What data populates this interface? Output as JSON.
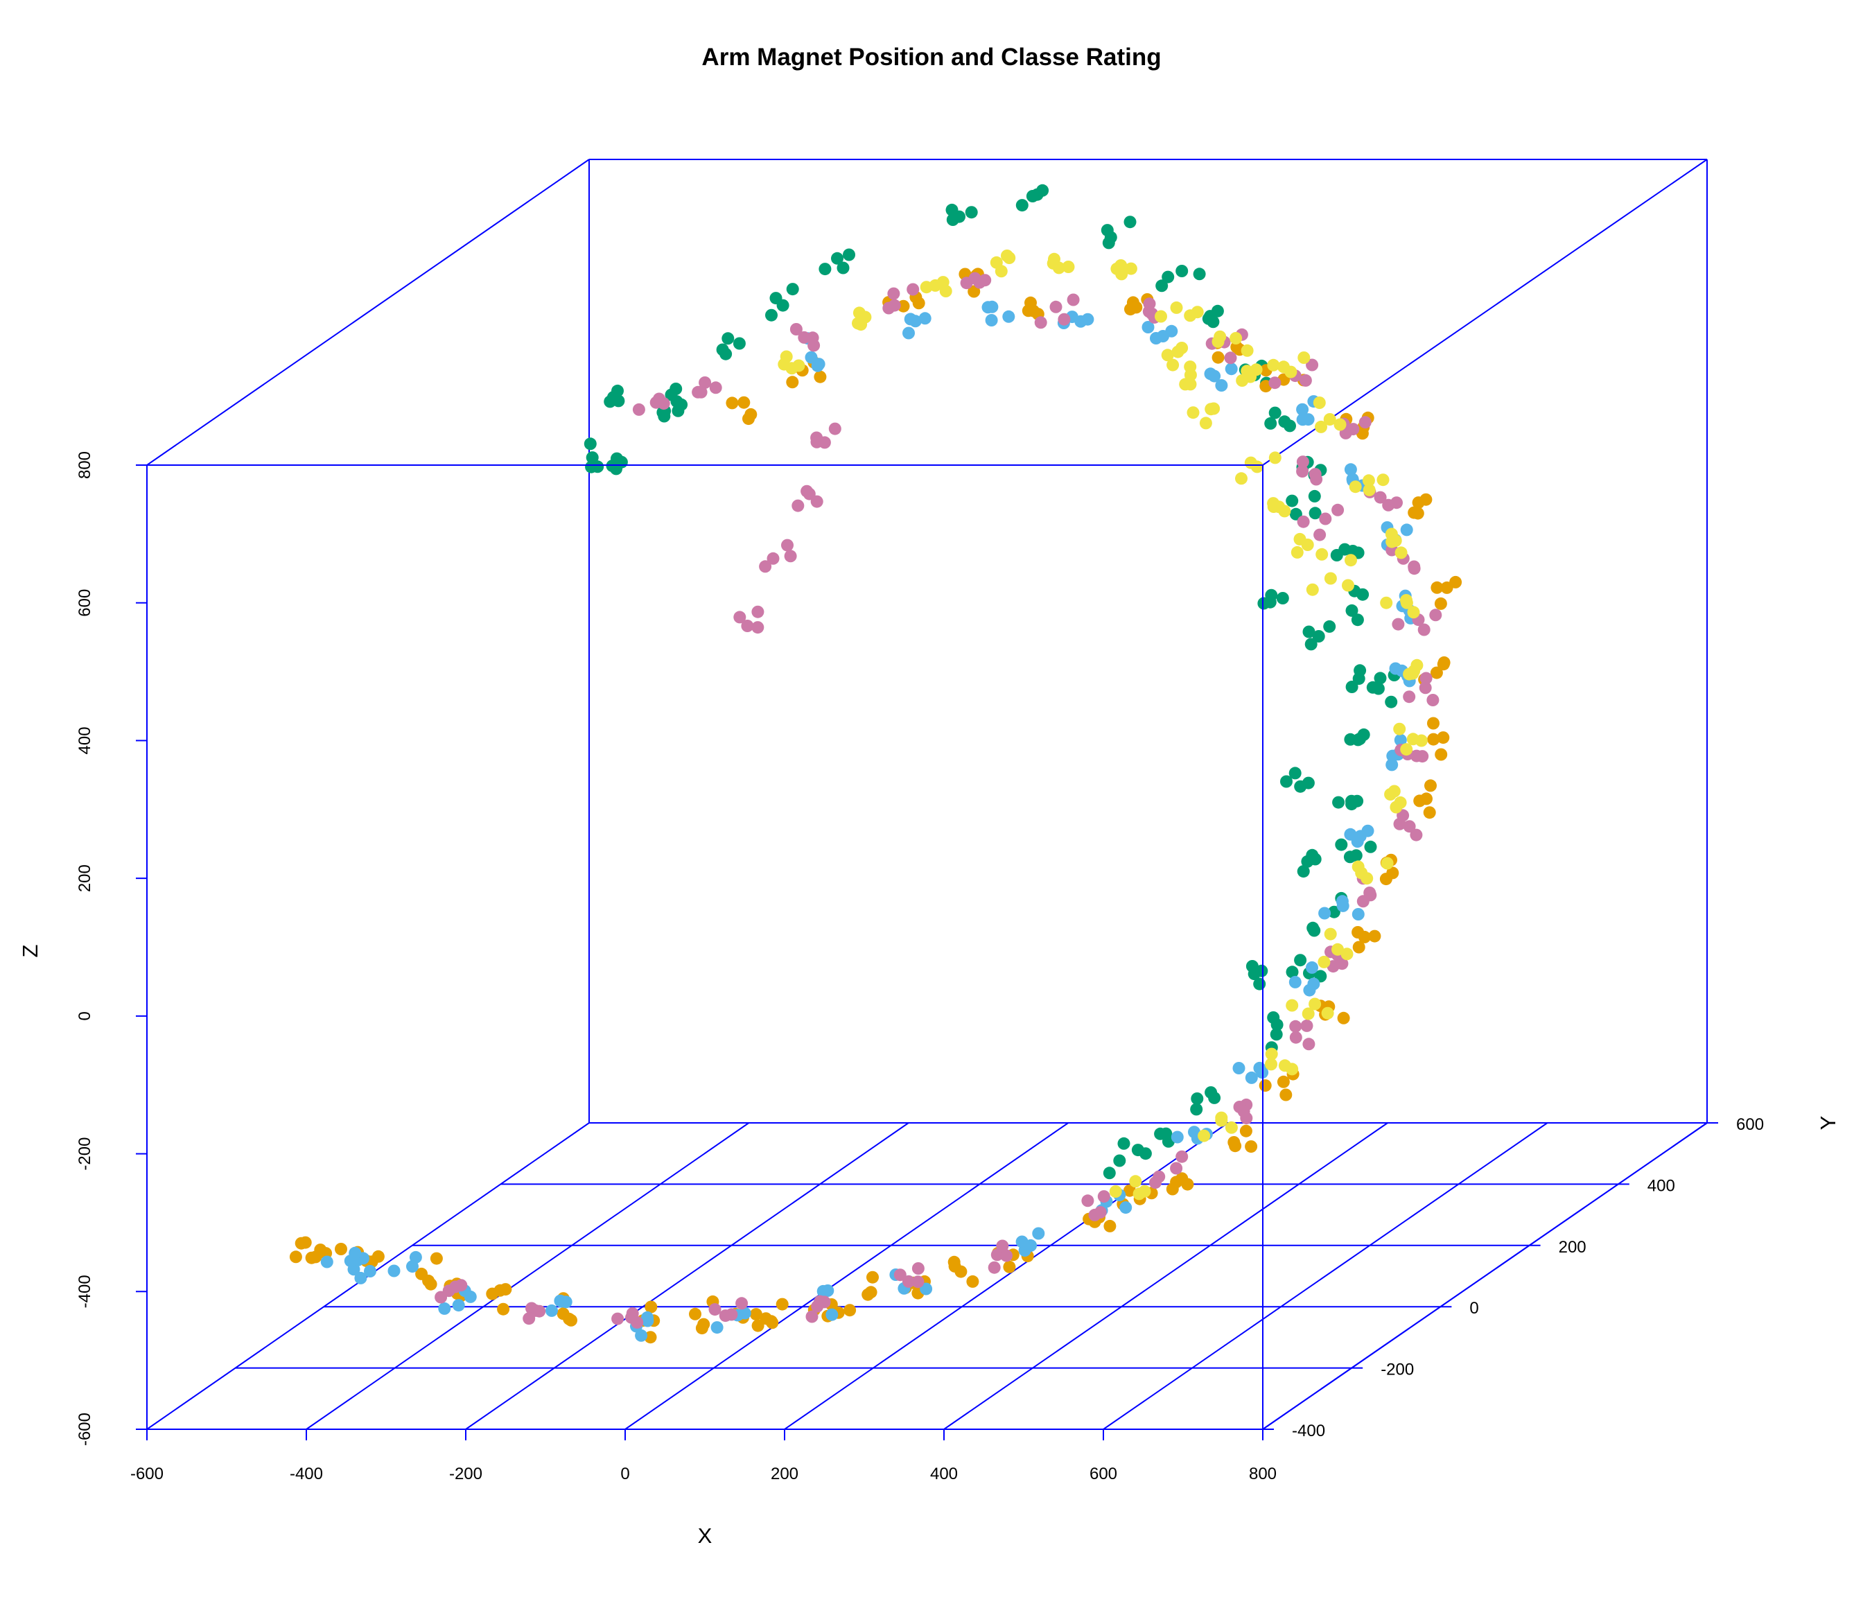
{
  "chart_data": {
    "type": "scatter3d",
    "title": "Arm Magnet Position and Classe Rating",
    "xlabel": "X",
    "ylabel": "Y",
    "zlabel": "Z",
    "xlim": [
      -600,
      800
    ],
    "ylim": [
      -400,
      600
    ],
    "zlim": [
      -600,
      800
    ],
    "x_ticks": [
      -600,
      -400,
      -200,
      0,
      200,
      400,
      600,
      800
    ],
    "y_ticks": [
      -400,
      -200,
      0,
      200,
      400,
      600
    ],
    "z_ticks": [
      -600,
      -400,
      -200,
      0,
      200,
      400,
      600,
      800
    ],
    "grid": "floor",
    "legend": "none",
    "class_colors": [
      "#009E73",
      "#E69F00",
      "#56B4E9",
      "#CC79A7",
      "#F0E442"
    ],
    "box_color": "#0000FF",
    "series": [
      {
        "color": "#009E73",
        "points": [
          [
            -175,
            -100,
            760
          ],
          [
            -120,
            -80,
            760
          ],
          [
            -100,
            0,
            790
          ],
          [
            -80,
            100,
            810
          ],
          [
            -60,
            200,
            820
          ],
          [
            -180,
            -150,
            700
          ],
          [
            -160,
            -120,
            680
          ],
          [
            -140,
            -60,
            720
          ],
          [
            30,
            300,
            850
          ],
          [
            100,
            350,
            860
          ],
          [
            220,
            300,
            820
          ],
          [
            320,
            280,
            780
          ],
          [
            400,
            200,
            750
          ],
          [
            500,
            120,
            700
          ],
          [
            560,
            80,
            650
          ],
          [
            600,
            60,
            600
          ],
          [
            630,
            -20,
            560
          ],
          [
            680,
            0,
            500
          ],
          [
            700,
            -20,
            420
          ],
          [
            720,
            -40,
            330
          ],
          [
            730,
            -60,
            250
          ],
          [
            740,
            -80,
            170
          ],
          [
            720,
            -60,
            80
          ],
          [
            700,
            -60,
            0
          ],
          [
            680,
            -80,
            -80
          ],
          [
            650,
            -100,
            -160
          ],
          [
            600,
            -150,
            -230
          ],
          [
            560,
            -200,
            -260
          ],
          [
            520,
            -220,
            -290
          ],
          [
            620,
            -60,
            450
          ],
          [
            660,
            -40,
            380
          ],
          [
            700,
            40,
            280
          ],
          [
            680,
            -100,
            200
          ],
          [
            700,
            -120,
            100
          ],
          [
            650,
            -150,
            -50
          ]
        ]
      },
      {
        "color": "#E69F00",
        "points": [
          [
            -40,
            -60,
            740
          ],
          [
            0,
            0,
            760
          ],
          [
            60,
            120,
            800
          ],
          [
            120,
            180,
            820
          ],
          [
            200,
            150,
            780
          ],
          [
            300,
            200,
            760
          ],
          [
            420,
            180,
            720
          ],
          [
            520,
            150,
            680
          ],
          [
            620,
            160,
            620
          ],
          [
            700,
            120,
            500
          ],
          [
            740,
            100,
            400
          ],
          [
            760,
            80,
            300
          ],
          [
            770,
            60,
            200
          ],
          [
            760,
            40,
            120
          ],
          [
            740,
            0,
            30
          ],
          [
            720,
            -40,
            -60
          ],
          [
            700,
            -80,
            -140
          ],
          [
            670,
            -120,
            -220
          ],
          [
            630,
            -160,
            -290
          ],
          [
            580,
            -200,
            -330
          ],
          [
            500,
            -240,
            -370
          ],
          [
            420,
            -280,
            -400
          ],
          [
            320,
            -300,
            -430
          ],
          [
            220,
            -330,
            -450
          ],
          [
            120,
            -350,
            -460
          ],
          [
            0,
            -360,
            -460
          ],
          [
            -100,
            -360,
            -450
          ],
          [
            -200,
            -340,
            -430
          ],
          [
            -300,
            -320,
            -410
          ],
          [
            -380,
            -300,
            -400
          ],
          [
            -420,
            -320,
            -380
          ],
          [
            -440,
            -330,
            -360
          ],
          [
            150,
            -340,
            -470
          ],
          [
            260,
            -320,
            -440
          ],
          [
            -250,
            -330,
            -420
          ],
          [
            60,
            -350,
            -455
          ],
          [
            360,
            -290,
            -420
          ],
          [
            540,
            -210,
            -350
          ]
        ]
      },
      {
        "color": "#56B4E9",
        "points": [
          [
            0,
            20,
            770
          ],
          [
            80,
            100,
            790
          ],
          [
            160,
            140,
            790
          ],
          [
            260,
            160,
            760
          ],
          [
            360,
            150,
            740
          ],
          [
            460,
            140,
            700
          ],
          [
            560,
            120,
            650
          ],
          [
            640,
            90,
            560
          ],
          [
            700,
            60,
            480
          ],
          [
            730,
            40,
            400
          ],
          [
            750,
            20,
            300
          ],
          [
            740,
            0,
            200
          ],
          [
            720,
            -20,
            100
          ],
          [
            700,
            -40,
            0
          ],
          [
            680,
            -70,
            -100
          ],
          [
            640,
            -120,
            -200
          ],
          [
            590,
            -170,
            -280
          ],
          [
            520,
            -220,
            -340
          ],
          [
            420,
            -260,
            -390
          ],
          [
            300,
            -300,
            -430
          ],
          [
            200,
            -320,
            -450
          ],
          [
            100,
            -340,
            -460
          ],
          [
            0,
            -350,
            -460
          ],
          [
            -120,
            -350,
            -450
          ],
          [
            -240,
            -330,
            -430
          ],
          [
            -340,
            -310,
            -410
          ],
          [
            -380,
            -320,
            -390
          ],
          [
            -400,
            -300,
            -400
          ]
        ]
      },
      {
        "color": "#CC79A7",
        "points": [
          [
            -150,
            -60,
            740
          ],
          [
            -100,
            -40,
            760
          ],
          [
            -20,
            40,
            790
          ],
          [
            60,
            100,
            810
          ],
          [
            140,
            160,
            820
          ],
          [
            240,
            140,
            790
          ],
          [
            340,
            170,
            770
          ],
          [
            440,
            160,
            730
          ],
          [
            540,
            140,
            690
          ],
          [
            620,
            110,
            620
          ],
          [
            680,
            80,
            540
          ],
          [
            720,
            60,
            460
          ],
          [
            750,
            40,
            380
          ],
          [
            770,
            20,
            290
          ],
          [
            770,
            0,
            200
          ],
          [
            760,
            -20,
            110
          ],
          [
            740,
            -50,
            20
          ],
          [
            710,
            -80,
            -70
          ],
          [
            680,
            -110,
            -160
          ],
          [
            640,
            -150,
            -240
          ],
          [
            580,
            -200,
            -310
          ],
          [
            500,
            -240,
            -360
          ],
          [
            400,
            -280,
            -400
          ],
          [
            300,
            -300,
            -430
          ],
          [
            200,
            -320,
            -450
          ],
          [
            100,
            -340,
            -460
          ],
          [
            -20,
            -350,
            -460
          ],
          [
            -140,
            -350,
            -450
          ],
          [
            -260,
            -330,
            -430
          ],
          [
            -50,
            100,
            540
          ],
          [
            -70,
            60,
            460
          ],
          [
            -80,
            20,
            380
          ],
          [
            -60,
            140,
            600
          ],
          [
            560,
            120,
            560
          ],
          [
            600,
            100,
            500
          ]
        ]
      },
      {
        "color": "#F0E442",
        "points": [
          [
            -20,
            0,
            780
          ],
          [
            40,
            60,
            800
          ],
          [
            100,
            120,
            830
          ],
          [
            160,
            150,
            850
          ],
          [
            220,
            170,
            840
          ],
          [
            300,
            180,
            820
          ],
          [
            380,
            160,
            780
          ],
          [
            460,
            150,
            740
          ],
          [
            540,
            130,
            700
          ],
          [
            600,
            110,
            640
          ],
          [
            660,
            90,
            560
          ],
          [
            700,
            70,
            480
          ],
          [
            730,
            50,
            400
          ],
          [
            750,
            30,
            310
          ],
          [
            760,
            10,
            220
          ],
          [
            750,
            -10,
            130
          ],
          [
            730,
            -40,
            40
          ],
          [
            710,
            -70,
            -50
          ],
          [
            690,
            -100,
            -130
          ],
          [
            660,
            -130,
            -190
          ],
          [
            620,
            -170,
            -250
          ],
          [
            540,
            -220,
            -320
          ],
          [
            420,
            120,
            700
          ],
          [
            460,
            100,
            660
          ],
          [
            520,
            90,
            580
          ],
          [
            560,
            80,
            520
          ],
          [
            600,
            60,
            480
          ],
          [
            640,
            40,
            440
          ],
          [
            380,
            140,
            720
          ],
          [
            480,
            160,
            690
          ]
        ]
      }
    ]
  }
}
